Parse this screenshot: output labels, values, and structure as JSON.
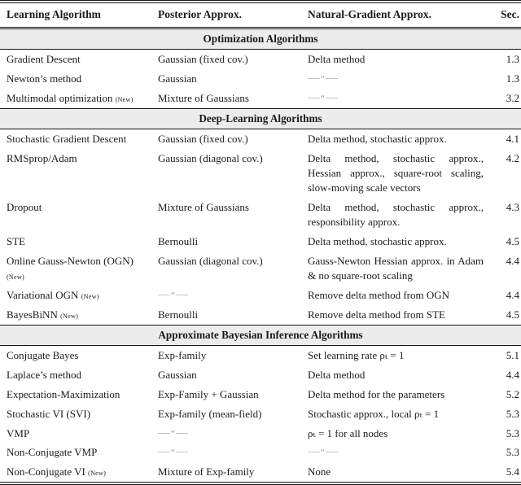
{
  "colors": {
    "text": "#1b1b1b",
    "rule": "#141414",
    "section_band_background": "#ececec",
    "ditto_dash": "#c2c2c2",
    "ditto_quote": "#8d8d8d"
  },
  "table": {
    "columns": [
      "Learning Algorithm",
      "Posterior Approx.",
      "Natural-Gradient Approx.",
      "Sec."
    ],
    "new_tag": "(New)",
    "ditto_display": "——“——",
    "sections": [
      {
        "title": "Optimization Algorithms",
        "rows": [
          {
            "algorithm": "Gradient Descent",
            "new": false,
            "posterior": "Gaussian (fixed cov.)",
            "natgrad": "Delta method",
            "sec": "1.3"
          },
          {
            "algorithm": "Newton’s method",
            "new": false,
            "posterior": "Gaussian",
            "natgrad": "__ditto__",
            "sec": "1.3"
          },
          {
            "algorithm": "Multimodal optimization",
            "new": true,
            "posterior": "Mixture of Gaussians",
            "natgrad": "__ditto__",
            "sec": "3.2"
          }
        ]
      },
      {
        "title": "Deep-Learning Algorithms",
        "rows": [
          {
            "algorithm": "Stochastic Gradient Descent",
            "new": false,
            "posterior": "Gaussian (fixed cov.)",
            "natgrad": "Delta method, stochastic approx.",
            "sec": "4.1"
          },
          {
            "algorithm": "RMSprop/Adam",
            "new": false,
            "posterior": "Gaussian (diagonal cov.)",
            "natgrad": "Delta method, stochastic approx., Hessian approx., square-root scaling, slow-moving scale vectors",
            "sec": "4.2"
          },
          {
            "algorithm": "Dropout",
            "new": false,
            "posterior": "Mixture of Gaussians",
            "natgrad": "Delta method, stochastic approx., responsibility approx.",
            "sec": "4.3"
          },
          {
            "algorithm": "STE",
            "new": false,
            "posterior": "Bernoulli",
            "natgrad": "Delta method, stochastic approx.",
            "sec": "4.5"
          },
          {
            "algorithm": "Online Gauss-Newton (OGN)",
            "new": true,
            "posterior": "Gaussian (diagonal cov.)",
            "natgrad": "Gauss-Newton Hessian approx. in Adam & no square-root scaling",
            "sec": "4.4"
          },
          {
            "algorithm": "Variational OGN",
            "new": true,
            "posterior": "__ditto__",
            "natgrad": "Remove delta method from OGN",
            "sec": "4.4"
          },
          {
            "algorithm": "BayesBiNN",
            "new": true,
            "posterior": "Bernoulli",
            "natgrad": "Remove delta method from STE",
            "sec": "4.5"
          }
        ]
      },
      {
        "title": "Approximate Bayesian Inference Algorithms",
        "rows": [
          {
            "algorithm": "Conjugate Bayes",
            "new": false,
            "posterior": "Exp-family",
            "natgrad": "Set learning rate ρₜ = 1",
            "sec": "5.1"
          },
          {
            "algorithm": "Laplace’s method",
            "new": false,
            "posterior": "Gaussian",
            "natgrad": "Delta method",
            "sec": "4.4"
          },
          {
            "algorithm": "Expectation-Maximization",
            "new": false,
            "posterior": "Exp-Family + Gaussian",
            "natgrad": "Delta method for the parameters",
            "sec": "5.2"
          },
          {
            "algorithm": "Stochastic VI (SVI)",
            "new": false,
            "posterior": "Exp-family (mean-field)",
            "natgrad": "Stochastic approx., local ρₜ = 1",
            "sec": "5.3"
          },
          {
            "algorithm": "VMP",
            "new": false,
            "posterior": "__ditto__",
            "natgrad": "ρₜ = 1 for all nodes",
            "sec": "5.3"
          },
          {
            "algorithm": "Non-Conjugate VMP",
            "new": false,
            "posterior": "__ditto__",
            "natgrad": "__ditto__",
            "sec": "5.3"
          },
          {
            "algorithm": "Non-Conjugate VI",
            "new": true,
            "posterior": "Mixture of Exp-family",
            "natgrad": "None",
            "sec": "5.4"
          }
        ]
      }
    ]
  }
}
